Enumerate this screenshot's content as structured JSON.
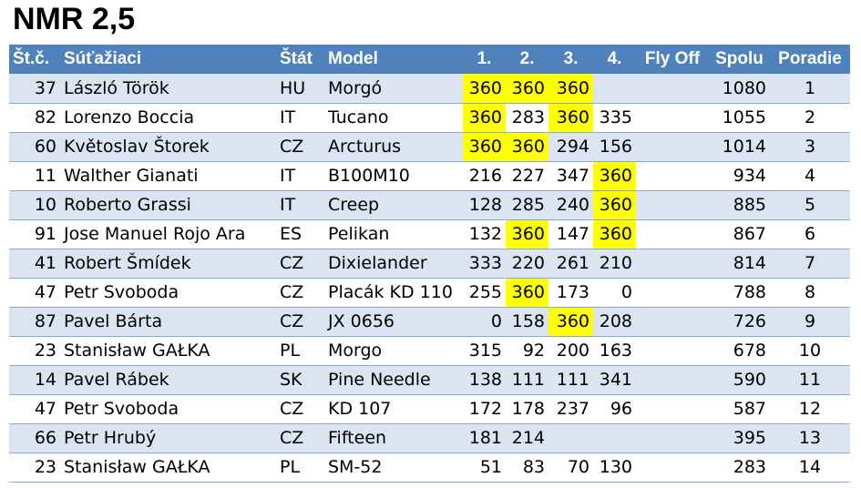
{
  "title": "NMR 2,5",
  "headers": {
    "number": "Št.č.",
    "competitor": "Súťažiaci",
    "state": "Štát",
    "model": "Model",
    "r1": "1.",
    "r2": "2.",
    "r3": "3.",
    "r4": "4.",
    "flyoff": "Fly Off",
    "total": "Spolu",
    "rank": "Poradie"
  },
  "highlight_color": "#ffff00",
  "header_color": "#4f81bd",
  "row_band_color": "#dbe5f1",
  "rows": [
    {
      "number": "37",
      "competitor": "László Török",
      "state": "HU",
      "model": "Morgó",
      "rounds": [
        "360",
        "360",
        "360",
        ""
      ],
      "flyoff": "",
      "total": "1080",
      "rank": "1",
      "highlight": [
        true,
        true,
        true,
        false
      ]
    },
    {
      "number": "82",
      "competitor": "Lorenzo Boccia",
      "state": "IT",
      "model": "Tucano",
      "rounds": [
        "360",
        "283",
        "360",
        "335"
      ],
      "flyoff": "",
      "total": "1055",
      "rank": "2",
      "highlight": [
        true,
        false,
        true,
        false
      ]
    },
    {
      "number": "60",
      "competitor": "Květoslav Štorek",
      "state": "CZ",
      "model": "Arcturus",
      "rounds": [
        "360",
        "360",
        "294",
        "156"
      ],
      "flyoff": "",
      "total": "1014",
      "rank": "3",
      "highlight": [
        true,
        true,
        false,
        false
      ]
    },
    {
      "number": "11",
      "competitor": "Walther Gianati",
      "state": "IT",
      "model": "B100M10",
      "rounds": [
        "216",
        "227",
        "347",
        "360"
      ],
      "flyoff": "",
      "total": "934",
      "rank": "4",
      "highlight": [
        false,
        false,
        false,
        true
      ]
    },
    {
      "number": "10",
      "competitor": "Roberto Grassi",
      "state": "IT",
      "model": "Creep",
      "rounds": [
        "128",
        "285",
        "240",
        "360"
      ],
      "flyoff": "",
      "total": "885",
      "rank": "5",
      "highlight": [
        false,
        false,
        false,
        true
      ]
    },
    {
      "number": "91",
      "competitor": "Jose Manuel Rojo Ara",
      "state": "ES",
      "model": "Pelikan",
      "rounds": [
        "132",
        "360",
        "147",
        "360"
      ],
      "flyoff": "",
      "total": "867",
      "rank": "6",
      "highlight": [
        false,
        true,
        false,
        true
      ]
    },
    {
      "number": "41",
      "competitor": "Robert Šmídek",
      "state": "CZ",
      "model": "Dixielander",
      "rounds": [
        "333",
        "220",
        "261",
        "210"
      ],
      "flyoff": "",
      "total": "814",
      "rank": "7",
      "highlight": [
        false,
        false,
        false,
        false
      ]
    },
    {
      "number": "47",
      "competitor": "Petr Svoboda",
      "state": "CZ",
      "model": "Placák KD 110",
      "rounds": [
        "255",
        "360",
        "173",
        "0"
      ],
      "flyoff": "",
      "total": "788",
      "rank": "8",
      "highlight": [
        false,
        true,
        false,
        false
      ]
    },
    {
      "number": "87",
      "competitor": "Pavel Bárta",
      "state": "CZ",
      "model": "JX 0656",
      "rounds": [
        "0",
        "158",
        "360",
        "208"
      ],
      "flyoff": "",
      "total": "726",
      "rank": "9",
      "highlight": [
        false,
        false,
        true,
        false
      ]
    },
    {
      "number": "23",
      "competitor": "Stanisław GAŁKA",
      "state": "PL",
      "model": "Morgo",
      "rounds": [
        "315",
        "92",
        "200",
        "163"
      ],
      "flyoff": "",
      "total": "678",
      "rank": "10",
      "highlight": [
        false,
        false,
        false,
        false
      ]
    },
    {
      "number": "14",
      "competitor": "Pavel Rábek",
      "state": "SK",
      "model": "Pine Needle",
      "rounds": [
        "138",
        "111",
        "111",
        "341"
      ],
      "flyoff": "",
      "total": "590",
      "rank": "11",
      "highlight": [
        false,
        false,
        false,
        false
      ]
    },
    {
      "number": "47",
      "competitor": "Petr Svoboda",
      "state": "CZ",
      "model": "KD 107",
      "rounds": [
        "172",
        "178",
        "237",
        "96"
      ],
      "flyoff": "",
      "total": "587",
      "rank": "12",
      "highlight": [
        false,
        false,
        false,
        false
      ]
    },
    {
      "number": "66",
      "competitor": "Petr Hrubý",
      "state": "CZ",
      "model": "Fifteen",
      "rounds": [
        "181",
        "214",
        "",
        ""
      ],
      "flyoff": "",
      "total": "395",
      "rank": "13",
      "highlight": [
        false,
        false,
        false,
        false
      ]
    },
    {
      "number": "23",
      "competitor": "Stanisław GAŁKA",
      "state": "PL",
      "model": "SM-52",
      "rounds": [
        "51",
        "83",
        "70",
        "130"
      ],
      "flyoff": "",
      "total": "283",
      "rank": "14",
      "highlight": [
        false,
        false,
        false,
        false
      ]
    }
  ]
}
